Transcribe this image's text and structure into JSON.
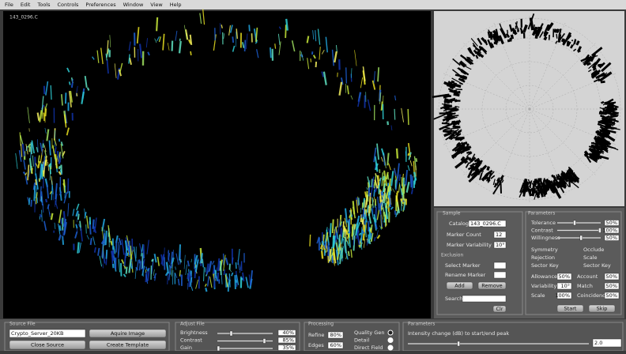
{
  "menu": [
    "File",
    "Edit",
    "Tools",
    "Controls",
    "Preferences",
    "Window",
    "View",
    "Help"
  ],
  "viewer": {
    "label": "143_0296.C"
  },
  "sample": {
    "title": "Sample",
    "catalogue_label": "Catalogue",
    "catalogue": "143_0296.C",
    "marker_count_label": "Marker Count",
    "marker_count": "12",
    "marker_variability_label": "Marker Variability",
    "marker_variability": "10°",
    "exclusion": {
      "title": "Exclusion",
      "select_marker": "Select Marker",
      "rename_marker": "Rename Marker",
      "add": "Add",
      "remove": "Remove",
      "search": "Search",
      "clear": "Clr"
    }
  },
  "parameters": {
    "title": "Parameters",
    "sliders": [
      {
        "label": "Tolerance",
        "value": "50%"
      },
      {
        "label": "Contrast",
        "value": "100%"
      },
      {
        "label": "Willingness",
        "value": "50%"
      }
    ],
    "options": [
      "Symmetry",
      "Occlude",
      "Rejection",
      "Scale",
      "Sector Key",
      "Sector Key"
    ],
    "fields": [
      {
        "label": "Allowance",
        "value": "50%"
      },
      {
        "label": "Account",
        "value": "50%"
      },
      {
        "label": "Variability",
        "value": "10°"
      },
      {
        "label": "Match",
        "value": "50%"
      },
      {
        "label": "Scale",
        "value": "100%"
      },
      {
        "label": "Coincidence",
        "value": "50%"
      }
    ],
    "start": "Start",
    "skip": "Skip"
  },
  "source_file": {
    "title": "Source File",
    "source": "Crypto_Server_20KB",
    "close_source": "Close Source",
    "acquire_image": "Aquire Image",
    "create_template": "Create Template"
  },
  "adjust_file": {
    "title": "Adjust File",
    "rows": [
      {
        "label": "Brightness",
        "value": "40%"
      },
      {
        "label": "Contrast",
        "value": "85%"
      },
      {
        "label": "Gain",
        "value": "35%"
      }
    ]
  },
  "processing": {
    "title": "Processing",
    "rows": [
      {
        "label": "Refine",
        "value": "80%"
      },
      {
        "label": "Edges",
        "value": "60%"
      }
    ],
    "options": [
      "Quality Gen",
      "Detail",
      "Direct Field"
    ]
  },
  "bottom_parameters": {
    "title": "Parameters",
    "description": "Intensity change (dB) to start/end peak",
    "value": "2.0"
  }
}
